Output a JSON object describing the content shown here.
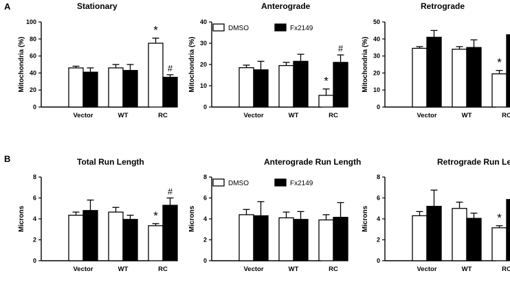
{
  "panel_labels": [
    "A",
    "B"
  ],
  "legend": {
    "series": [
      {
        "name": "DMSO",
        "color": "#ffffff"
      },
      {
        "name": "Fx2149",
        "color": "#000000"
      }
    ]
  },
  "chart_data": [
    {
      "type": "bar",
      "title": "Stationary",
      "ylabel": "Mitochondria (%)",
      "categories": [
        "Vector",
        "WT",
        "RC"
      ],
      "ylim": [
        0,
        100
      ],
      "yticks": [
        0,
        20,
        40,
        60,
        80,
        100
      ],
      "series": [
        {
          "name": "DMSO",
          "values": [
            46,
            46,
            75
          ],
          "errors": [
            2,
            4,
            6
          ]
        },
        {
          "name": "Fx2149",
          "values": [
            41,
            43,
            35
          ],
          "errors": [
            5,
            7,
            3
          ]
        }
      ],
      "annotations": [
        {
          "category": "RC",
          "series": "DMSO",
          "text": "*"
        },
        {
          "category": "RC",
          "series": "Fx2149",
          "text": "#"
        }
      ],
      "show_legend": false
    },
    {
      "type": "bar",
      "title": "Anterograde",
      "ylabel": "Mitochondria (%)",
      "categories": [
        "Vector",
        "WT",
        "RC"
      ],
      "ylim": [
        0,
        40
      ],
      "yticks": [
        0,
        10,
        20,
        30,
        40
      ],
      "series": [
        {
          "name": "DMSO",
          "values": [
            18.5,
            19.5,
            5.5
          ],
          "errors": [
            1.2,
            1.5,
            3
          ]
        },
        {
          "name": "Fx2149",
          "values": [
            17.5,
            21.5,
            21
          ],
          "errors": [
            4,
            3.3,
            3.5
          ]
        }
      ],
      "annotations": [
        {
          "category": "RC",
          "series": "DMSO",
          "text": "*"
        },
        {
          "category": "RC",
          "series": "Fx2149",
          "text": "#"
        }
      ],
      "show_legend": true
    },
    {
      "type": "bar",
      "title": "Retrograde",
      "ylabel": "Mitochondria (%)",
      "categories": [
        "Vector",
        "WT",
        "RC"
      ],
      "ylim": [
        0,
        50
      ],
      "yticks": [
        0,
        10,
        20,
        30,
        40,
        50
      ],
      "series": [
        {
          "name": "DMSO",
          "values": [
            34.5,
            34,
            19.5
          ],
          "errors": [
            1,
            1.5,
            2
          ]
        },
        {
          "name": "Fx2149",
          "values": [
            41,
            35,
            42.5
          ],
          "errors": [
            4,
            4.5,
            4
          ]
        }
      ],
      "annotations": [
        {
          "category": "RC",
          "series": "DMSO",
          "text": "*"
        },
        {
          "category": "RC",
          "series": "Fx2149",
          "text": "#"
        }
      ],
      "show_legend": false
    },
    {
      "type": "bar",
      "title": "Total  Run  Length",
      "ylabel": "Microns",
      "categories": [
        "Vector",
        "WT",
        "RC"
      ],
      "ylim": [
        0,
        8
      ],
      "yticks": [
        0,
        2,
        4,
        6,
        8
      ],
      "series": [
        {
          "name": "DMSO",
          "values": [
            4.35,
            4.65,
            3.35
          ],
          "errors": [
            0.3,
            0.45,
            0.2
          ]
        },
        {
          "name": "Fx2149",
          "values": [
            4.8,
            3.95,
            5.3
          ],
          "errors": [
            1.0,
            0.4,
            0.7
          ]
        }
      ],
      "annotations": [
        {
          "category": "RC",
          "series": "DMSO",
          "text": "*"
        },
        {
          "category": "RC",
          "series": "Fx2149",
          "text": "#"
        }
      ],
      "show_legend": false
    },
    {
      "type": "bar",
      "title": "Anterograde Run Length",
      "ylabel": "Microns",
      "categories": [
        "Vector",
        "WT",
        "RC"
      ],
      "ylim": [
        0,
        8
      ],
      "yticks": [
        0,
        2,
        4,
        6,
        8
      ],
      "series": [
        {
          "name": "DMSO",
          "values": [
            4.4,
            4.1,
            3.9
          ],
          "errors": [
            0.5,
            0.55,
            0.5
          ]
        },
        {
          "name": "Fx2149",
          "values": [
            4.3,
            3.95,
            4.15
          ],
          "errors": [
            1.35,
            0.75,
            1.4
          ]
        }
      ],
      "annotations": [],
      "show_legend": true
    },
    {
      "type": "bar",
      "title": "Retrograde Run Length",
      "ylabel": "Microns",
      "categories": [
        "Vector",
        "WT",
        "RC"
      ],
      "ylim": [
        0,
        8
      ],
      "yticks": [
        0,
        2,
        4,
        6,
        8
      ],
      "series": [
        {
          "name": "DMSO",
          "values": [
            4.3,
            5.0,
            3.15
          ],
          "errors": [
            0.4,
            0.6,
            0.2
          ]
        },
        {
          "name": "Fx2149",
          "values": [
            5.2,
            4.05,
            5.85
          ],
          "errors": [
            1.55,
            0.5,
            0.8
          ]
        }
      ],
      "annotations": [
        {
          "category": "RC",
          "series": "DMSO",
          "text": "*"
        },
        {
          "category": "RC",
          "series": "Fx2149",
          "text": "#"
        }
      ],
      "show_legend": false
    }
  ]
}
